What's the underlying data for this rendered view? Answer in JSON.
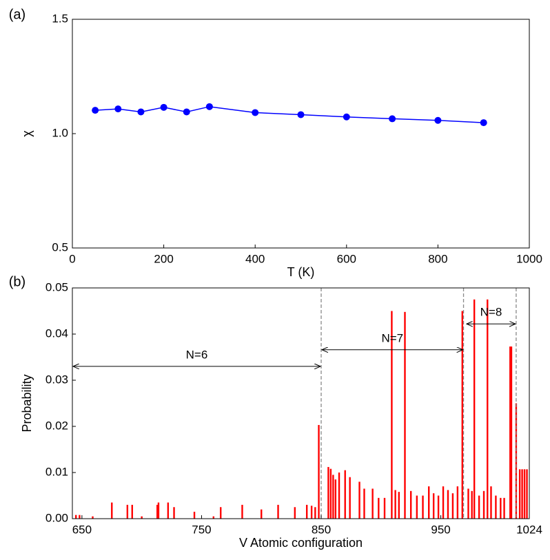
{
  "chart_data": [
    {
      "type": "line",
      "panel": "(a)",
      "xlabel": "T (K)",
      "ylabel": "χ",
      "color": "#0000ff",
      "x": [
        50,
        100,
        150,
        200,
        250,
        300,
        400,
        500,
        600,
        700,
        800,
        900
      ],
      "values": [
        1.102,
        1.108,
        1.095,
        1.115,
        1.095,
        1.118,
        1.092,
        1.083,
        1.073,
        1.065,
        1.058,
        1.048
      ],
      "xlim": [
        0,
        1000
      ],
      "xticks": [
        0,
        200,
        400,
        600,
        800,
        1000
      ],
      "ylim": [
        0.5,
        1.5
      ],
      "yticks": [
        0.5,
        {
          "value": 1,
          "label": "1.0"
        },
        1.5
      ]
    },
    {
      "type": "bar",
      "panel": "(b)",
      "xlabel": "V Atomic configuration",
      "ylabel": "Probability",
      "color": "#ff0000",
      "x": [
        645,
        648,
        659,
        675,
        688,
        692,
        700,
        713,
        714,
        722,
        727,
        744,
        760,
        766,
        784,
        800,
        814,
        828,
        838,
        842,
        845,
        848,
        856,
        858,
        860,
        862,
        865,
        870,
        874,
        882,
        886,
        893,
        898,
        903,
        909,
        912,
        915,
        920,
        925,
        930,
        935,
        940,
        944,
        948,
        952,
        956,
        960,
        964,
        968,
        973,
        976,
        978,
        982,
        986,
        989,
        992,
        996,
        1000,
        1003,
        1008,
        1009,
        1013,
        1016,
        1018,
        1020,
        1022
      ],
      "values": [
        0.0008,
        0.0008,
        0.0005,
        0.0035,
        0.003,
        0.003,
        0.0005,
        0.003,
        0.0035,
        0.0035,
        0.0025,
        0.0015,
        0.0005,
        0.0025,
        0.003,
        0.002,
        0.003,
        0.0025,
        0.003,
        0.0028,
        0.0025,
        0.0203,
        0.0112,
        0.0108,
        0.0095,
        0.0085,
        0.01,
        0.0105,
        0.009,
        0.008,
        0.0065,
        0.0065,
        0.0045,
        0.0045,
        0.045,
        0.0062,
        0.0058,
        0.0448,
        0.006,
        0.005,
        0.005,
        0.007,
        0.0055,
        0.005,
        0.007,
        0.0062,
        0.0055,
        0.007,
        0.045,
        0.0065,
        0.006,
        0.0475,
        0.005,
        0.006,
        0.0475,
        0.007,
        0.005,
        0.0045,
        0.0045,
        0.0373,
        0.0373,
        0.025,
        0.0107,
        0.0107,
        0.0107,
        0.0107
      ],
      "xlim": [
        642,
        1024
      ],
      "xticks": [
        650,
        750,
        850,
        950,
        1024
      ],
      "ylim": [
        0,
        0.05
      ],
      "yticks": [
        {
          "value": 0,
          "label": "0.00"
        },
        {
          "value": 0.01,
          "label": "0.01"
        },
        {
          "value": 0.02,
          "label": "0.02"
        },
        {
          "value": 0.03,
          "label": "0.03"
        },
        {
          "value": 0.04,
          "label": "0.04"
        },
        {
          "value": 0.05,
          "label": "0.05"
        }
      ],
      "vlines": [
        850,
        969,
        1013
      ],
      "annotations": [
        {
          "text": "N=6",
          "x": [
            642,
            850
          ],
          "y": 0.033
        },
        {
          "text": "N=7",
          "x": [
            850,
            969
          ],
          "y": 0.0366
        },
        {
          "text": "N=8",
          "x": [
            971,
            1013
          ],
          "y": 0.0422
        }
      ]
    }
  ]
}
